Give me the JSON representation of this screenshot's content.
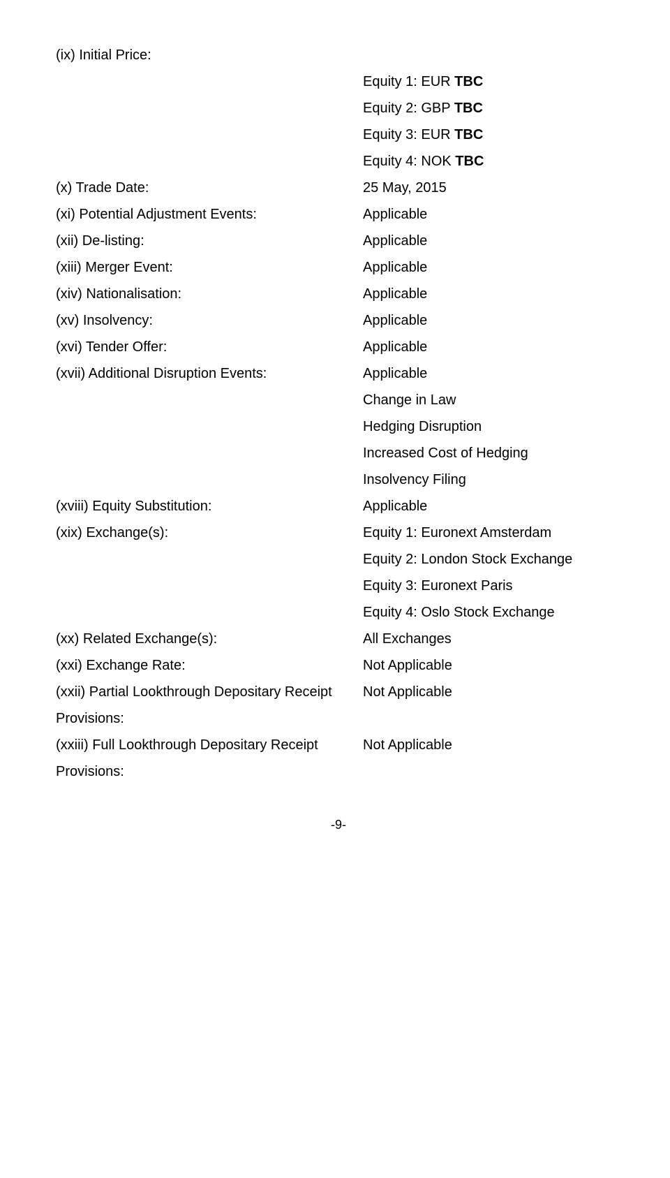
{
  "items": {
    "ix": {
      "label": "(ix)   Initial Price:"
    },
    "price1": {
      "prefix": "Equity 1: EUR ",
      "value": "TBC"
    },
    "price2": {
      "prefix": "Equity 2: GBP ",
      "value": "TBC"
    },
    "price3": {
      "prefix": "Equity 3: EUR ",
      "value": "TBC"
    },
    "price4": {
      "prefix": "Equity 4: NOK ",
      "value": "TBC"
    },
    "x": {
      "label": "(x) Trade Date:",
      "value": "25 May, 2015"
    },
    "xi": {
      "label": "(xi) Potential Adjustment Events:",
      "value": "Applicable"
    },
    "xii": {
      "label": "(xii) De-listing:",
      "value": "Applicable"
    },
    "xiii": {
      "label": "(xiii) Merger Event:",
      "value": "Applicable"
    },
    "xiv": {
      "label": "(xiv) Nationalisation:",
      "value": "Applicable"
    },
    "xv": {
      "label": "(xv) Insolvency:",
      "value": "Applicable"
    },
    "xvi": {
      "label": "(xvi) Tender Offer:",
      "value": "Applicable"
    },
    "xvii": {
      "label": "(xvii) Additional Disruption Events:",
      "value": "Applicable"
    },
    "xvii_a": "Change in Law",
    "xvii_b": "Hedging Disruption",
    "xvii_c": "Increased Cost of Hedging",
    "xvii_d": "Insolvency Filing",
    "xviii": {
      "label": "(xviii) Equity Substitution:",
      "value": "Applicable"
    },
    "xix": {
      "label": "(xix) Exchange(s):",
      "value": "Equity 1: Euronext Amsterdam"
    },
    "xix_b": "Equity 2: London Stock Exchange",
    "xix_c": "Equity 3: Euronext Paris",
    "xix_d": "Equity 4: Oslo Stock Exchange",
    "xx": {
      "label": "(xx) Related Exchange(s):",
      "value": "All Exchanges"
    },
    "xxi": {
      "label": "(xxi) Exchange Rate:",
      "value": "Not Applicable"
    },
    "xxii": {
      "label": "(xxii) Partial Lookthrough Depositary Receipt Provisions:",
      "value": "Not Applicable"
    },
    "xxiii": {
      "label": "(xxiii) Full Lookthrough Depositary Receipt Provisions:",
      "value": "Not Applicable"
    }
  },
  "page": "-9-"
}
